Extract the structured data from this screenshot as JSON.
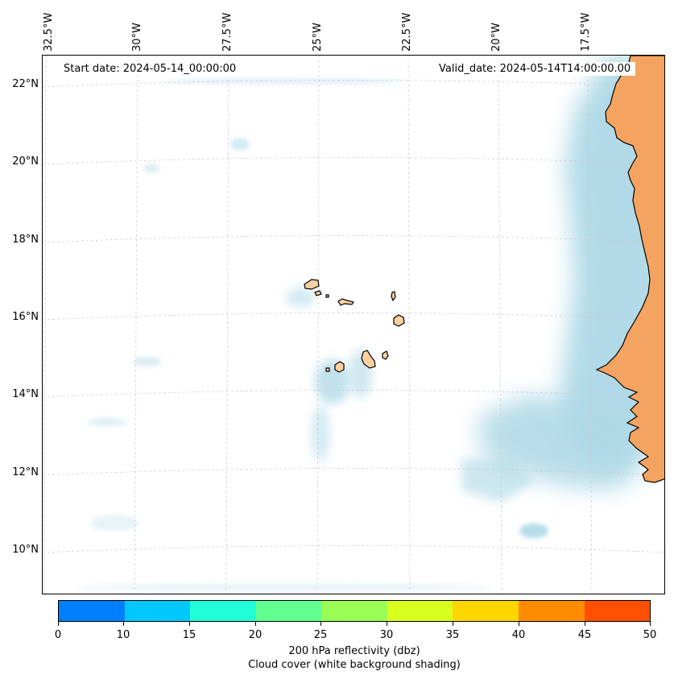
{
  "map": {
    "start_date": "Start date: 2024-05-14_00:00:00",
    "valid_date": "Valid_date: 2024-05-14T14:00:00.00",
    "longitude_labels": [
      "32.5°W",
      "30°W",
      "27.5°W",
      "25°W",
      "22.5°W",
      "20°W",
      "17.5°W"
    ],
    "latitude_labels": [
      "22°N",
      "20°N",
      "18°N",
      "16°N",
      "14°N",
      "12°N",
      "10°N"
    ],
    "colors": {
      "land_mainland": "#f4a460",
      "land_islands": "#fdd0a2",
      "cloud_cover": "#add8e6",
      "coastline": "#000000",
      "gridline": "#c8c8c8"
    }
  },
  "colorbar": {
    "ticks": [
      "0",
      "10",
      "15",
      "20",
      "25",
      "30",
      "35",
      "40",
      "45",
      "50"
    ],
    "colors": [
      "#0080ff",
      "#00c8ff",
      "#20ffd8",
      "#60ff90",
      "#99ff55",
      "#d8ff20",
      "#ffd700",
      "#ff8c00",
      "#ff4f00"
    ],
    "label_line1": "200 hPa reflectivity (dbz)",
    "label_line2": "Cloud cover (white background shading)"
  }
}
